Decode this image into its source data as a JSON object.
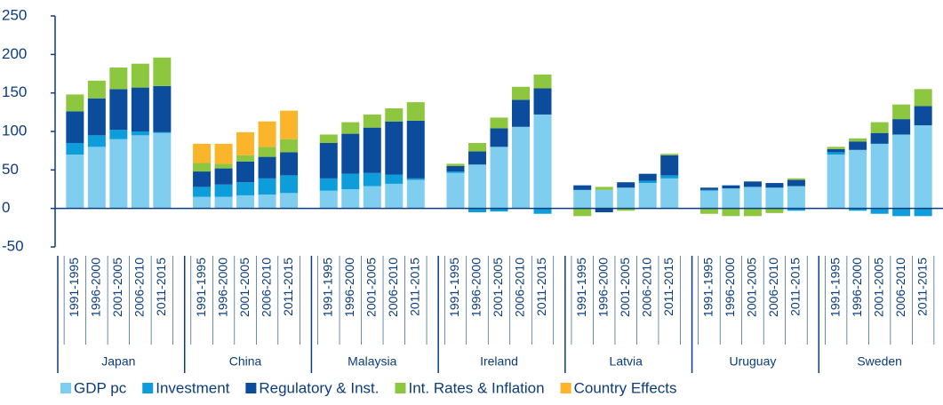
{
  "chart_data": {
    "type": "stacked_bar",
    "groups": [
      "Japan",
      "China",
      "Malaysia",
      "Ireland",
      "Latvia",
      "Uruguay",
      "Sweden"
    ],
    "categories": [
      "1991-1995",
      "1996-2000",
      "2001-2005",
      "2006-2010",
      "2011-2015",
      "1991-1995",
      "1996-2000",
      "2001-2005",
      "2006-2010",
      "2011-2015",
      "1991-1995",
      "1996-2000",
      "2001-2005",
      "2006-2010",
      "2011-2015",
      "1991-1995",
      "1996-2000",
      "2001-2005",
      "2006-2010",
      "2011-2015",
      "1991-1995",
      "1996-2000",
      "2001-2005",
      "2006-2010",
      "2011-2015",
      "1991-1995",
      "1996-2000",
      "2001-2005",
      "2006-2010",
      "2011-2015",
      "1991-1995",
      "1996-2000",
      "2001-2005",
      "2006-2010",
      "2011-2015"
    ],
    "series": [
      {
        "name": "GDP pc",
        "color": "#7fcdef",
        "values": [
          70,
          80,
          90,
          95,
          98,
          15,
          15,
          17,
          18,
          20,
          23,
          25,
          29,
          32,
          37,
          46,
          57,
          80,
          106,
          122,
          24,
          24,
          27,
          33,
          39,
          23,
          26,
          28,
          27,
          29,
          70,
          76,
          84,
          96,
          108
        ]
      },
      {
        "name": "Investment",
        "color": "#0d9ddb",
        "values": [
          15,
          15,
          12,
          5,
          1,
          13,
          16,
          17,
          21,
          23,
          16,
          20,
          17,
          12,
          2,
          2,
          -5,
          -4,
          0,
          -7,
          0,
          0,
          0,
          3,
          4,
          1,
          0,
          0,
          0,
          -3,
          3,
          -3,
          -7,
          -10,
          -10
        ]
      },
      {
        "name": "Regulatory & Inst.",
        "color": "#0b4c9c",
        "values": [
          41,
          48,
          53,
          57,
          60,
          20,
          21,
          27,
          28,
          30,
          46,
          52,
          59,
          69,
          75,
          7,
          17,
          24,
          35,
          34,
          6,
          -5,
          7,
          9,
          26,
          3,
          4,
          7,
          6,
          8,
          4,
          11,
          14,
          20,
          25
        ]
      },
      {
        "name": "Int. Rates & Inflation",
        "color": "#8dc63f",
        "values": [
          22,
          23,
          28,
          31,
          37,
          11,
          6,
          8,
          13,
          17,
          11,
          15,
          17,
          17,
          24,
          3,
          11,
          14,
          17,
          18,
          -10,
          4,
          -3,
          0,
          2,
          -7,
          -10,
          -10,
          -6,
          2,
          3,
          4,
          14,
          19,
          22
        ]
      },
      {
        "name": "Country Effects",
        "color": "#fbb52b",
        "values": [
          0,
          0,
          0,
          0,
          0,
          25,
          26,
          30,
          33,
          37,
          0,
          0,
          0,
          0,
          0,
          0,
          0,
          0,
          0,
          0,
          0,
          0,
          0,
          0,
          0,
          0,
          0,
          0,
          0,
          0,
          0,
          0,
          0,
          0,
          0
        ]
      }
    ],
    "ylim": [
      -50,
      250
    ],
    "yticks": [
      -50,
      0,
      50,
      100,
      150,
      200,
      250
    ]
  }
}
